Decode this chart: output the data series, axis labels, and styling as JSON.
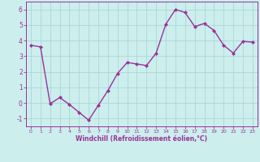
{
  "x": [
    0,
    1,
    2,
    3,
    4,
    5,
    6,
    7,
    8,
    9,
    10,
    11,
    12,
    13,
    14,
    15,
    16,
    17,
    18,
    19,
    20,
    21,
    22,
    23
  ],
  "y": [
    3.7,
    3.6,
    -0.05,
    0.35,
    -0.1,
    -0.6,
    -1.1,
    -0.15,
    0.8,
    1.9,
    2.6,
    2.5,
    2.4,
    3.2,
    5.05,
    6.0,
    5.8,
    4.9,
    5.1,
    4.65,
    3.7,
    3.2,
    3.95,
    3.9
  ],
  "line_color": "#993399",
  "marker": "D",
  "marker_size": 2.0,
  "line_width": 1.0,
  "bg_color": "#cceeed",
  "grid_color": "#aad8d4",
  "xlabel": "Windchill (Refroidissement éolien,°C)",
  "xlabel_color": "#993399",
  "tick_color": "#993399",
  "axis_color": "#993399",
  "ylim": [
    -1.5,
    6.5
  ],
  "xlim": [
    -0.5,
    23.5
  ],
  "yticks": [
    -1,
    0,
    1,
    2,
    3,
    4,
    5,
    6
  ],
  "xtick_labels": [
    "0",
    "1",
    "2",
    "3",
    "4",
    "5",
    "6",
    "7",
    "8",
    "9",
    "10",
    "11",
    "12",
    "13",
    "14",
    "15",
    "16",
    "17",
    "18",
    "19",
    "20",
    "21",
    "22",
    "23"
  ]
}
